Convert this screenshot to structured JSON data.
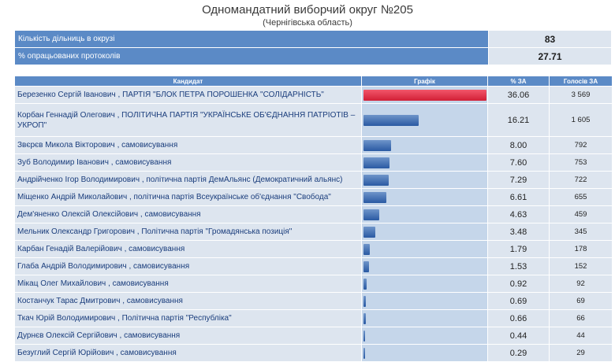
{
  "header": {
    "title": "Одномандатний виборчий округ №205",
    "subtitle": "(Чернігівська область)"
  },
  "summary": [
    {
      "label": "Кількість дільниць в окрузі",
      "value": "83"
    },
    {
      "label": "% опрацьованих протоколів",
      "value": "27.71"
    }
  ],
  "columns": {
    "candidate": "Кандидат",
    "graph": "Графік",
    "pct": "% ЗА",
    "votes": "Голосів ЗА"
  },
  "chart_data": {
    "type": "bar",
    "series": [
      {
        "name": "% ЗА",
        "values": [
          36.06,
          16.21,
          8.0,
          7.6,
          7.29,
          6.61,
          4.63,
          3.48,
          1.79,
          1.53,
          0.92,
          0.69,
          0.66,
          0.44,
          0.29
        ]
      }
    ]
  },
  "candidates": [
    {
      "name": "Березенко Сергій Іванович",
      "party": ", ПАРТІЯ \"БЛОК ПЕТРА ПОРОШЕНКА \"СОЛІДАРНІСТЬ\"",
      "pct": "36.06",
      "votes": "3 569",
      "share": 36.06,
      "lead": true
    },
    {
      "name": "Корбан Геннадій Олегович",
      "party": ", ПОЛІТИЧНА ПАРТІЯ \"УКРАЇНСЬКЕ ОБ'ЄДНАННЯ ПАТРІОТІВ – УКРОП\"",
      "pct": "16.21",
      "votes": "1 605",
      "share": 16.21
    },
    {
      "name": "Звєрєв Микола Вікторович",
      "party": ", самовисування",
      "pct": "8.00",
      "votes": "792",
      "share": 8.0
    },
    {
      "name": "Зуб Володимир Іванович",
      "party": ", самовисування",
      "pct": "7.60",
      "votes": "753",
      "share": 7.6
    },
    {
      "name": "Андрійченко Ігор Володимирович",
      "party": ", політична партія ДемАльянс (Демократичний альянс)",
      "pct": "7.29",
      "votes": "722",
      "share": 7.29
    },
    {
      "name": "Міщенко Андрій Миколайович",
      "party": ", політична партія Всеукраїнське об'єднання \"Свобода\"",
      "pct": "6.61",
      "votes": "655",
      "share": 6.61
    },
    {
      "name": "Дем'яненко Олексій Олексійович",
      "party": ", самовисування",
      "pct": "4.63",
      "votes": "459",
      "share": 4.63
    },
    {
      "name": "Мельник Олександр Григорович",
      "party": ", Політична партія \"Громадянська позиція\"",
      "pct": "3.48",
      "votes": "345",
      "share": 3.48
    },
    {
      "name": "Карбан Генадій Валерійович",
      "party": ", самовисування",
      "pct": "1.79",
      "votes": "178",
      "share": 1.79
    },
    {
      "name": "Глаба Андрій Володимирович",
      "party": ", самовисування",
      "pct": "1.53",
      "votes": "152",
      "share": 1.53
    },
    {
      "name": "Мікац Олег Михайлович",
      "party": ", самовисування",
      "pct": "0.92",
      "votes": "92",
      "share": 0.92
    },
    {
      "name": "Костанчук Тарас Дмитрович",
      "party": ", самовисування",
      "pct": "0.69",
      "votes": "69",
      "share": 0.69
    },
    {
      "name": "Ткач Юрій Володимирович",
      "party": ", Політична партія \"Республіка\"",
      "pct": "0.66",
      "votes": "66",
      "share": 0.66
    },
    {
      "name": "Дурнєв Олексій Сергійович",
      "party": ", самовисування",
      "pct": "0.44",
      "votes": "44",
      "share": 0.44
    },
    {
      "name": "Безуглий Сергій Юрійович",
      "party": ", самовисування",
      "pct": "0.29",
      "votes": "29",
      "share": 0.29
    }
  ],
  "colors": {
    "header": "#5b8ac6",
    "cell": "#dde5ef",
    "graph_cell": "#c5d6ea",
    "bar": "#2a5aa3",
    "lead_bar": "#d11f36"
  }
}
